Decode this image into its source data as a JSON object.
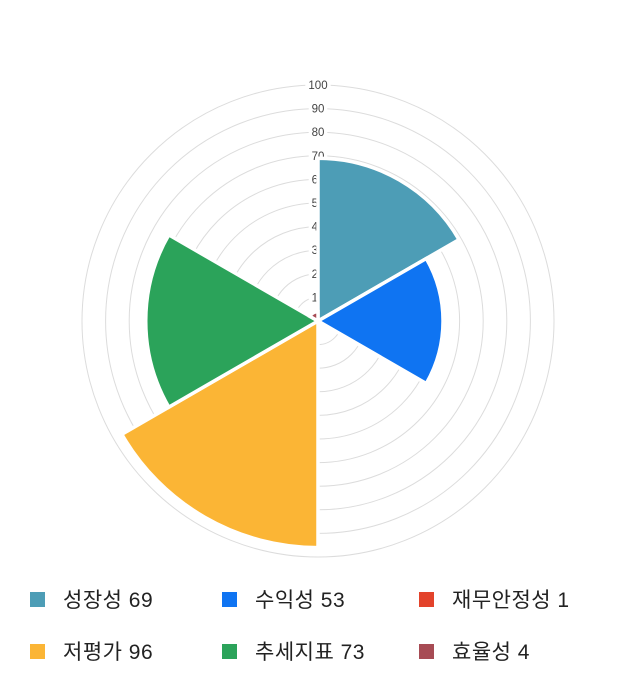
{
  "chart_data": {
    "type": "polar_area",
    "title": "",
    "categories": [
      "성장성",
      "수익성",
      "재무안정성",
      "저평가",
      "추세지표",
      "효율성"
    ],
    "values": [
      69,
      53,
      1,
      96,
      73,
      4
    ],
    "colors": [
      "#4D9DB6",
      "#0F74F2",
      "#E3432B",
      "#FBB535",
      "#2BA35A",
      "#A74B54"
    ],
    "rmax": 100,
    "ticks": [
      10,
      20,
      30,
      40,
      50,
      60,
      70,
      80,
      90,
      100
    ],
    "start_angle_deg": 0,
    "direction": "clockwise",
    "sector_angle_deg": 60,
    "grid": true,
    "grid_color": "#DCDCDC",
    "tick_label_color": "#444444",
    "legend_position": "bottom"
  },
  "legend": {
    "items": [
      {
        "key": "growth",
        "label": "성장성",
        "value": 69,
        "display": "성장성 69",
        "color": "#4D9DB6"
      },
      {
        "key": "profitability",
        "label": "수익성",
        "value": 53,
        "display": "수익성 53",
        "color": "#0F74F2"
      },
      {
        "key": "financial-stability",
        "label": "재무안정성",
        "value": 1,
        "display": "재무안정성 1",
        "color": "#E3432B"
      },
      {
        "key": "undervaluation",
        "label": "저평가",
        "value": 96,
        "display": "저평가 96",
        "color": "#FBB535"
      },
      {
        "key": "trend-indicator",
        "label": "추세지표",
        "value": 73,
        "display": "추세지표 73",
        "color": "#2BA35A"
      },
      {
        "key": "efficiency",
        "label": "효율성",
        "value": 4,
        "display": "효율성 4",
        "color": "#A74B54"
      }
    ]
  }
}
